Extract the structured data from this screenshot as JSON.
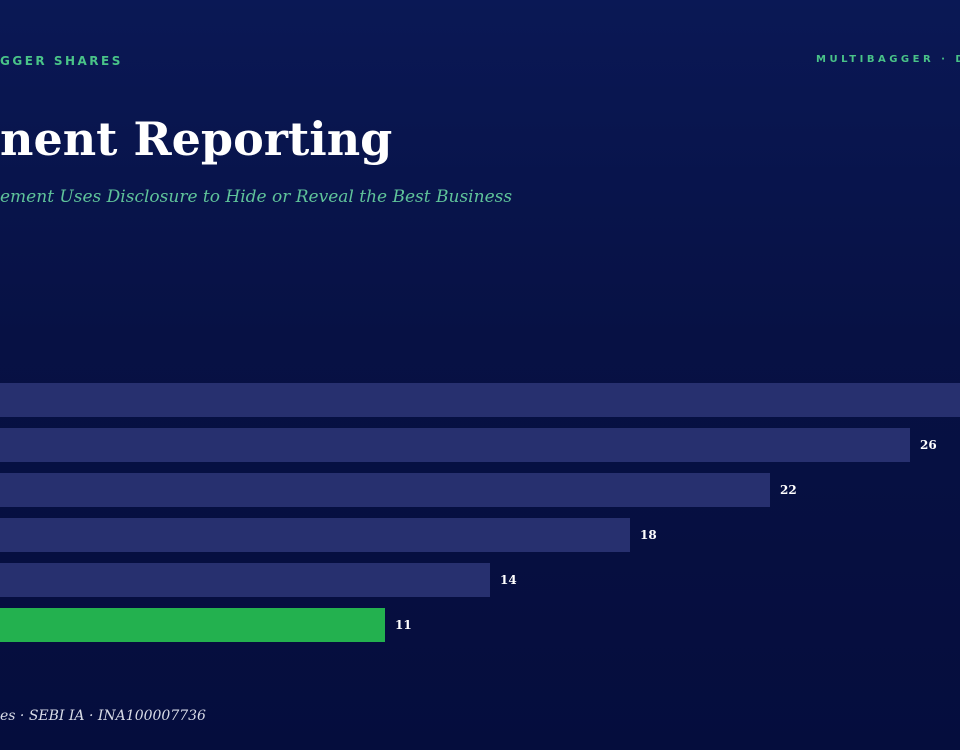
{
  "header": {
    "kicker_left": "GGER SHARES",
    "kicker_right": "MULTIBAGGER · D",
    "title": "nent Reporting",
    "subtitle": "ement Uses Disclosure to Hide or Reveal the Best Business"
  },
  "footer": {
    "text": "es · SEBI IA · INA100007736"
  },
  "colors": {
    "bar": "#27306f",
    "bar_highlight": "#23b14f",
    "label": "#ffffff"
  },
  "chart_data": {
    "type": "bar",
    "orientation": "horizontal",
    "values": [
      30,
      26,
      22,
      18,
      14,
      11
    ],
    "data_labels": [
      "",
      "26",
      "22",
      "18",
      "14",
      "11"
    ],
    "highlight_index": 5,
    "xlim": [
      0,
      30
    ],
    "grid": false
  }
}
